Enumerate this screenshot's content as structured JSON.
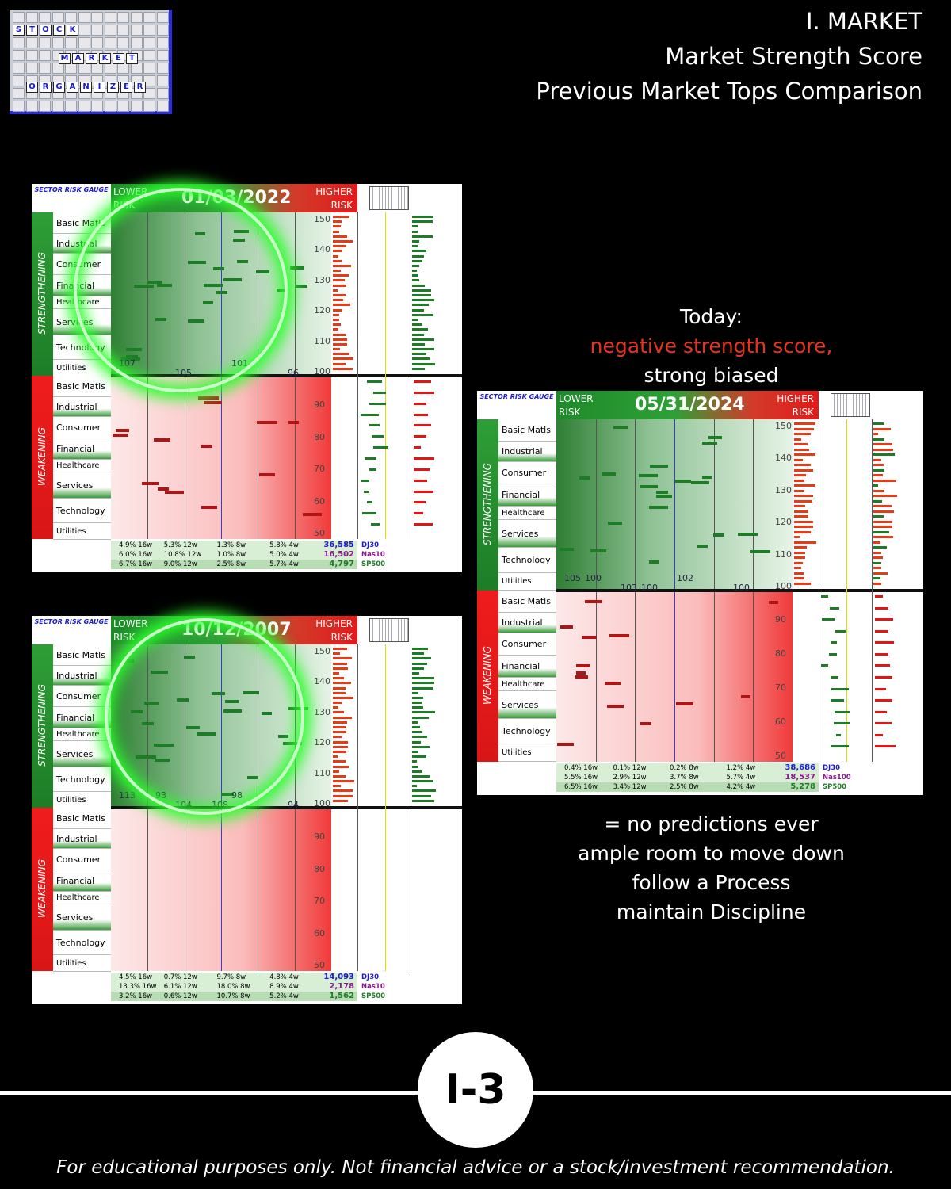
{
  "header": {
    "line1": "I. MARKET",
    "line2": "Market Strength Score",
    "line3": "Previous Market Tops Comparison"
  },
  "logo": {
    "word1": [
      "S",
      "T",
      "O",
      "C",
      "K"
    ],
    "word2": [
      "M",
      "A",
      "R",
      "K",
      "E",
      "T"
    ],
    "word3": [
      "O",
      "R",
      "G",
      "A",
      "N",
      "I",
      "Z",
      "E",
      "R"
    ]
  },
  "panel_common": {
    "gauge": "SECTOR RISK GAUGE",
    "lower": "LOWER",
    "risk": "RISK",
    "higher": "HIGHER",
    "strengthening": "STRENGTHENING",
    "weakening": "WEAKENING",
    "sectors": [
      "Basic Matls",
      "Industrial",
      "Consumer",
      "Financial",
      "Healthcare",
      "Services",
      "Technology",
      "Utilities"
    ],
    "y_ticks_top": [
      "150",
      "140",
      "130",
      "120",
      "110",
      "100"
    ],
    "y_ticks_bottom": [
      "90",
      "80",
      "70",
      "60",
      "50"
    ]
  },
  "panels": [
    {
      "date": "01/03/2022",
      "stats": [
        {
          "c1": "4.9% 16w",
          "c2": "5.3% 12w",
          "c3": "1.3% 8w",
          "c4": "5.8% 4w",
          "value": "36,585",
          "index": "DJ30"
        },
        {
          "c1": "6.0% 16w",
          "c2": "10.8% 12w",
          "c3": "1.0% 8w",
          "c4": "5.0% 4w",
          "value": "16,502",
          "index": "Nas10"
        },
        {
          "c1": "6.7% 16w",
          "c2": "9.0% 12w",
          "c3": "2.5% 8w",
          "c4": "5.7% 4w",
          "value": "4,797",
          "index": "SP500"
        }
      ],
      "labels": [
        "107",
        "105",
        "101",
        "96"
      ]
    },
    {
      "date": "10/12/2007",
      "stats": [
        {
          "c1": "4.5% 16w",
          "c2": "0.7% 12w",
          "c3": "9.7% 8w",
          "c4": "4.8% 4w",
          "value": "14,093",
          "index": "DJ30"
        },
        {
          "c1": "13.3% 16w",
          "c2": "6.1% 12w",
          "c3": "18.0% 8w",
          "c4": "8.9% 4w",
          "value": "2,178",
          "index": "Nas10"
        },
        {
          "c1": "3.2% 16w",
          "c2": "0.6% 12w",
          "c3": "10.7% 8w",
          "c4": "5.2% 4w",
          "value": "1,562",
          "index": "SP500"
        }
      ],
      "labels": [
        "113",
        "104",
        "98",
        "94",
        "93",
        "108"
      ]
    },
    {
      "date": "05/31/2024",
      "stats": [
        {
          "c1": "0.4% 16w",
          "c2": "0.1% 12w",
          "c3": "0.2% 8w",
          "c4": "1.2% 4w",
          "value": "38,686",
          "index": "DJ30"
        },
        {
          "c1": "5.5% 16w",
          "c2": "2.9% 12w",
          "c3": "3.7% 8w",
          "c4": "5.7% 4w",
          "value": "18,537",
          "index": "Nas100"
        },
        {
          "c1": "6.5% 16w",
          "c2": "3.4% 12w",
          "c3": "2.5% 8w",
          "c4": "4.2% 4w",
          "value": "5,278",
          "index": "SP500"
        }
      ],
      "labels": [
        "105",
        "103",
        "102",
        "100",
        "100",
        "100"
      ]
    }
  ],
  "today": {
    "line1": "Today:",
    "line2": "negative strength score,",
    "line3": "strong biased",
    "line2_color": "#e8321e"
  },
  "notes": [
    "= no predictions ever",
    "ample room to move down",
    "follow a Process",
    "maintain Discipline"
  ],
  "badge": "I-3",
  "disclaimer": "For educational purposes only. Not financial advice or a stock/investment recommendation."
}
